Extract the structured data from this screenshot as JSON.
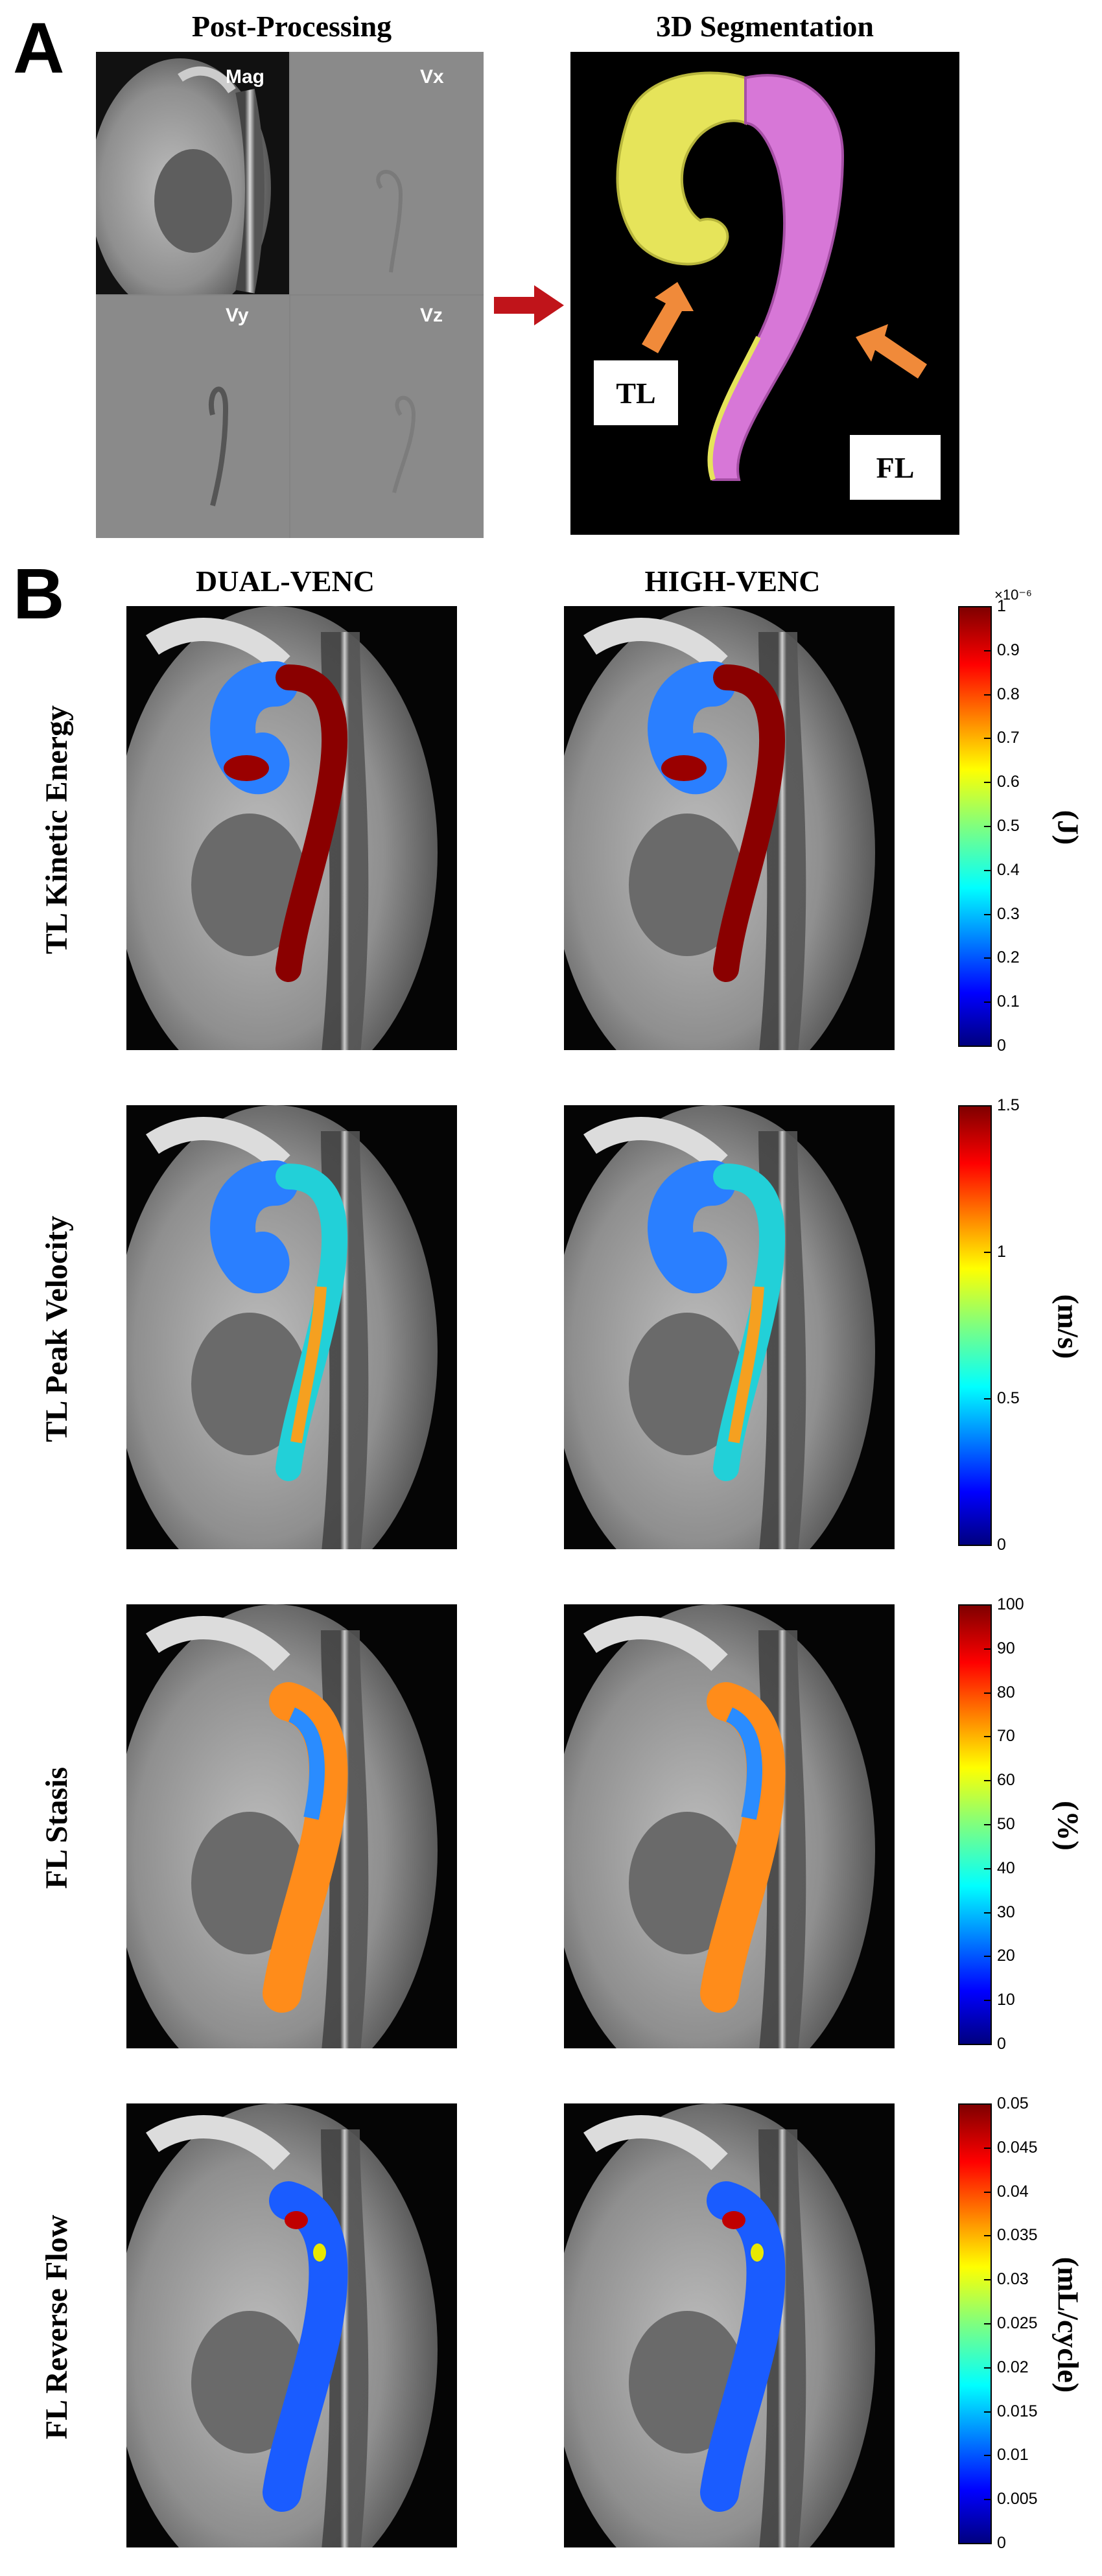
{
  "panel_a": {
    "letter": "A",
    "post_processing_title": "Post-Processing",
    "segmentation_title": "3D Segmentation",
    "quadrants": [
      "Mag",
      "Vx",
      "Vy",
      "Vz"
    ],
    "lumen_labels": {
      "true_lumen": "TL",
      "false_lumen": "FL"
    }
  },
  "panel_b": {
    "letter": "B",
    "columns": [
      "DUAL-VENC",
      "HIGH-VENC"
    ],
    "rows": [
      {
        "label": "TL Kinetic Energy",
        "unit": "(J)",
        "exponent": "×10⁻⁶",
        "ticks": [
          "1",
          "0.9",
          "0.8",
          "0.7",
          "0.6",
          "0.5",
          "0.4",
          "0.3",
          "0.2",
          "0.1",
          "0"
        ]
      },
      {
        "label": "TL Peak Velocity",
        "unit": "(m/s)",
        "exponent": "",
        "ticks": [
          "1.5",
          "1",
          "0.5",
          "0"
        ]
      },
      {
        "label": "FL Stasis",
        "unit": "(%)",
        "exponent": "",
        "ticks": [
          "100",
          "90",
          "80",
          "70",
          "60",
          "50",
          "40",
          "30",
          "20",
          "10",
          "0"
        ]
      },
      {
        "label": "FL Reverse Flow",
        "unit": "(mL/cycle)",
        "exponent": "",
        "ticks": [
          "0.05",
          "0.045",
          "0.04",
          "0.035",
          "0.03",
          "0.025",
          "0.02",
          "0.015",
          "0.01",
          "0.005",
          "0"
        ]
      }
    ]
  },
  "colors": {
    "segmentation_true_lumen": "#e6e45a",
    "segmentation_false_lumen": "#d777d7",
    "arrow_orange": "#f08a3a",
    "arrow_red": "#c0141a",
    "colormap": [
      "#00007f",
      "#0000ff",
      "#007fff",
      "#00ffff",
      "#7fff7f",
      "#ffff00",
      "#ff7f00",
      "#ff0000",
      "#7f0000"
    ]
  }
}
